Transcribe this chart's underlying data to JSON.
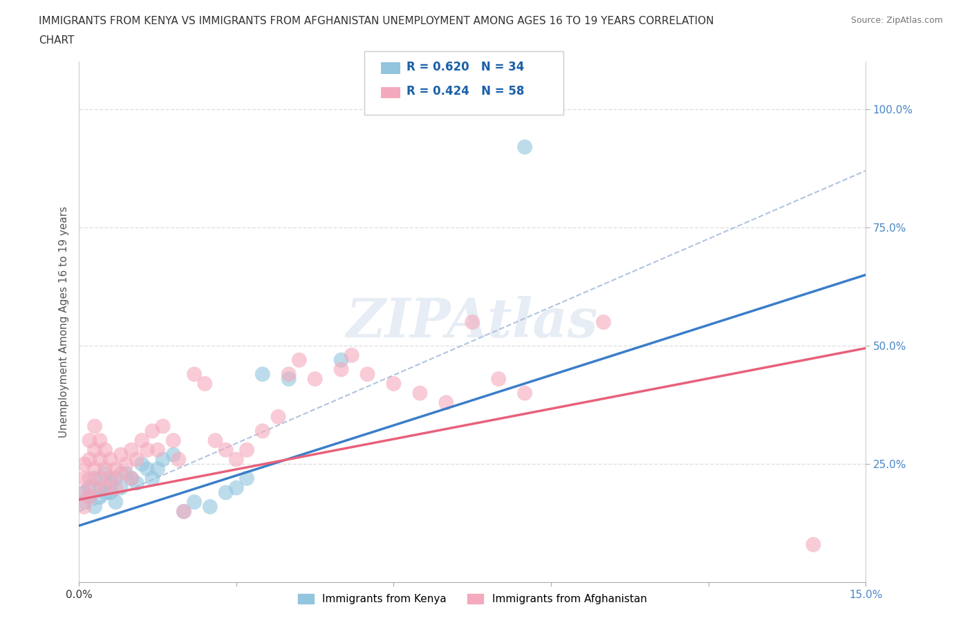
{
  "title_line1": "IMMIGRANTS FROM KENYA VS IMMIGRANTS FROM AFGHANISTAN UNEMPLOYMENT AMONG AGES 16 TO 19 YEARS CORRELATION",
  "title_line2": "CHART",
  "source": "Source: ZipAtlas.com",
  "ylabel": "Unemployment Among Ages 16 to 19 years",
  "xlim": [
    0.0,
    0.15
  ],
  "ylim": [
    0.0,
    1.1
  ],
  "xticks": [
    0.0,
    0.03,
    0.06,
    0.09,
    0.12,
    0.15
  ],
  "xticklabels_show": [
    "0.0%",
    "",
    "",
    "",
    "",
    "15.0%"
  ],
  "yticks": [
    0.25,
    0.5,
    0.75,
    1.0
  ],
  "yticklabels": [
    "25.0%",
    "50.0%",
    "75.0%",
    "100.0%"
  ],
  "watermark": "ZIPAtlas",
  "legend_kenya": "Immigrants from Kenya",
  "legend_afghanistan": "Immigrants from Afghanistan",
  "kenya_R": "0.620",
  "kenya_N": "34",
  "afghanistan_R": "0.424",
  "afghanistan_N": "58",
  "kenya_color": "#92c5de",
  "afghanistan_color": "#f4a9bc",
  "trend_kenya_color": "#3a7dc9",
  "trend_afghanistan_color": "#e8607a",
  "dashed_line_color": "#b0c4de",
  "background_color": "#ffffff",
  "grid_color": "#e0e0e0",
  "tick_label_color": "#4a86c8",
  "title_color": "#333333",
  "kenya_trend": [
    0.0,
    0.12,
    0.15,
    0.65
  ],
  "afg_trend": [
    0.0,
    0.175,
    0.15,
    0.495
  ],
  "dash_trend": [
    0.0,
    0.15,
    0.15,
    0.87
  ],
  "kenya_scatter": [
    [
      0.001,
      0.17
    ],
    [
      0.001,
      0.19
    ],
    [
      0.002,
      0.2
    ],
    [
      0.002,
      0.18
    ],
    [
      0.003,
      0.16
    ],
    [
      0.003,
      0.22
    ],
    [
      0.004,
      0.2
    ],
    [
      0.004,
      0.18
    ],
    [
      0.005,
      0.19
    ],
    [
      0.005,
      0.23
    ],
    [
      0.006,
      0.21
    ],
    [
      0.006,
      0.19
    ],
    [
      0.007,
      0.22
    ],
    [
      0.007,
      0.17
    ],
    [
      0.008,
      0.2
    ],
    [
      0.009,
      0.23
    ],
    [
      0.01,
      0.22
    ],
    [
      0.011,
      0.21
    ],
    [
      0.012,
      0.25
    ],
    [
      0.013,
      0.24
    ],
    [
      0.014,
      0.22
    ],
    [
      0.015,
      0.24
    ],
    [
      0.016,
      0.26
    ],
    [
      0.018,
      0.27
    ],
    [
      0.02,
      0.15
    ],
    [
      0.022,
      0.17
    ],
    [
      0.025,
      0.16
    ],
    [
      0.028,
      0.19
    ],
    [
      0.03,
      0.2
    ],
    [
      0.032,
      0.22
    ],
    [
      0.035,
      0.44
    ],
    [
      0.04,
      0.43
    ],
    [
      0.05,
      0.47
    ],
    [
      0.085,
      0.92
    ]
  ],
  "afghanistan_scatter": [
    [
      0.001,
      0.16
    ],
    [
      0.001,
      0.19
    ],
    [
      0.001,
      0.22
    ],
    [
      0.001,
      0.25
    ],
    [
      0.002,
      0.18
    ],
    [
      0.002,
      0.22
    ],
    [
      0.002,
      0.26
    ],
    [
      0.002,
      0.3
    ],
    [
      0.003,
      0.2
    ],
    [
      0.003,
      0.24
    ],
    [
      0.003,
      0.28
    ],
    [
      0.003,
      0.33
    ],
    [
      0.004,
      0.22
    ],
    [
      0.004,
      0.26
    ],
    [
      0.004,
      0.3
    ],
    [
      0.005,
      0.2
    ],
    [
      0.005,
      0.24
    ],
    [
      0.005,
      0.28
    ],
    [
      0.006,
      0.22
    ],
    [
      0.006,
      0.26
    ],
    [
      0.007,
      0.24
    ],
    [
      0.007,
      0.2
    ],
    [
      0.008,
      0.23
    ],
    [
      0.008,
      0.27
    ],
    [
      0.009,
      0.25
    ],
    [
      0.01,
      0.28
    ],
    [
      0.01,
      0.22
    ],
    [
      0.011,
      0.26
    ],
    [
      0.012,
      0.3
    ],
    [
      0.013,
      0.28
    ],
    [
      0.014,
      0.32
    ],
    [
      0.015,
      0.28
    ],
    [
      0.016,
      0.33
    ],
    [
      0.018,
      0.3
    ],
    [
      0.019,
      0.26
    ],
    [
      0.02,
      0.15
    ],
    [
      0.022,
      0.44
    ],
    [
      0.024,
      0.42
    ],
    [
      0.026,
      0.3
    ],
    [
      0.028,
      0.28
    ],
    [
      0.03,
      0.26
    ],
    [
      0.032,
      0.28
    ],
    [
      0.035,
      0.32
    ],
    [
      0.038,
      0.35
    ],
    [
      0.04,
      0.44
    ],
    [
      0.042,
      0.47
    ],
    [
      0.045,
      0.43
    ],
    [
      0.05,
      0.45
    ],
    [
      0.052,
      0.48
    ],
    [
      0.055,
      0.44
    ],
    [
      0.06,
      0.42
    ],
    [
      0.065,
      0.4
    ],
    [
      0.07,
      0.38
    ],
    [
      0.075,
      0.55
    ],
    [
      0.08,
      0.43
    ],
    [
      0.085,
      0.4
    ],
    [
      0.1,
      0.55
    ],
    [
      0.14,
      0.08
    ]
  ]
}
